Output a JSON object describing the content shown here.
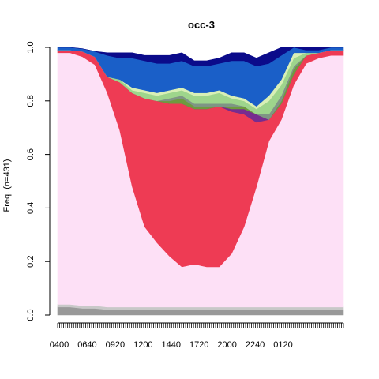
{
  "chart_data": {
    "type": "area",
    "title": "occ-3",
    "ylabel": "Freq. (n=431)",
    "xlabel": "",
    "ylim": [
      0,
      1
    ],
    "y_ticks": [
      "0.0",
      "0.2",
      "0.4",
      "0.6",
      "0.8",
      "1.0"
    ],
    "x_tick_labels": [
      "0400",
      "0640",
      "0920",
      "1200",
      "1440",
      "1720",
      "2000",
      "2240",
      "0120"
    ],
    "x_categories_count": 144,
    "legend": "none",
    "grid": false,
    "x": [
      "0400",
      "0540",
      "0640",
      "0700",
      "0740",
      "0800",
      "0830",
      "0900",
      "0920",
      "1000",
      "1100",
      "1200",
      "1330",
      "1440",
      "1530",
      "1600",
      "1640",
      "1700",
      "1720",
      "1800",
      "2000",
      "2240",
      "0120",
      "0350"
    ],
    "series": [
      {
        "color": "#999999",
        "values": [
          0.03,
          0.03,
          0.025,
          0.025,
          0.02,
          0.02,
          0.02,
          0.02,
          0.02,
          0.02,
          0.02,
          0.02,
          0.02,
          0.02,
          0.02,
          0.02,
          0.02,
          0.02,
          0.02,
          0.02,
          0.02,
          0.02,
          0.02,
          0.02
        ]
      },
      {
        "color": "#c8c8c8",
        "values": [
          0.01,
          0.01,
          0.01,
          0.01,
          0.01,
          0.01,
          0.01,
          0.01,
          0.01,
          0.01,
          0.01,
          0.01,
          0.01,
          0.01,
          0.01,
          0.01,
          0.01,
          0.01,
          0.01,
          0.01,
          0.01,
          0.01,
          0.01,
          0.01
        ]
      },
      {
        "color": "#fde0f6",
        "values": [
          0.94,
          0.94,
          0.93,
          0.9,
          0.8,
          0.66,
          0.45,
          0.3,
          0.24,
          0.19,
          0.15,
          0.16,
          0.15,
          0.15,
          0.2,
          0.3,
          0.45,
          0.62,
          0.7,
          0.83,
          0.91,
          0.93,
          0.94,
          0.94
        ]
      },
      {
        "color": "#ee3b54",
        "values": [
          0.01,
          0.01,
          0.02,
          0.03,
          0.06,
          0.18,
          0.35,
          0.48,
          0.53,
          0.57,
          0.61,
          0.58,
          0.59,
          0.6,
          0.53,
          0.42,
          0.24,
          0.08,
          0.06,
          0.04,
          0.03,
          0.02,
          0.02,
          0.02
        ]
      },
      {
        "color": "#772c8f",
        "values": [
          0.0,
          0.0,
          0.0,
          0.0,
          0.0,
          0.0,
          0.0,
          0.0,
          0.0,
          0.0,
          0.0,
          0.0,
          0.0,
          0.0,
          0.01,
          0.02,
          0.03,
          0.0,
          0.0,
          0.0,
          0.0,
          0.0,
          0.0,
          0.0
        ]
      },
      {
        "color": "#6e9a3f",
        "values": [
          0.0,
          0.0,
          0.0,
          0.0,
          0.0,
          0.0,
          0.0,
          0.0,
          0.0,
          0.01,
          0.02,
          0.01,
          0.01,
          0.0,
          0.01,
          0.01,
          0.0,
          0.0,
          0.01,
          0.02,
          0.0,
          0.0,
          0.0,
          0.0
        ]
      },
      {
        "color": "#7f9585",
        "values": [
          0.0,
          0.0,
          0.0,
          0.0,
          0.0,
          0.0,
          0.0,
          0.0,
          0.0,
          0.01,
          0.01,
          0.01,
          0.01,
          0.01,
          0.01,
          0.0,
          0.0,
          0.02,
          0.02,
          0.01,
          0.0,
          0.0,
          0.0,
          0.0
        ]
      },
      {
        "color": "#9ed58c",
        "values": [
          0.0,
          0.0,
          0.0,
          0.0,
          0.0,
          0.01,
          0.01,
          0.02,
          0.02,
          0.02,
          0.02,
          0.03,
          0.03,
          0.04,
          0.02,
          0.02,
          0.02,
          0.05,
          0.04,
          0.03,
          0.01,
          0.0,
          0.0,
          0.0
        ]
      },
      {
        "color": "#d8efb6",
        "values": [
          0.0,
          0.0,
          0.0,
          0.0,
          0.0,
          0.0,
          0.01,
          0.01,
          0.01,
          0.01,
          0.01,
          0.01,
          0.01,
          0.01,
          0.01,
          0.01,
          0.01,
          0.02,
          0.02,
          0.02,
          0.0,
          0.0,
          0.0,
          0.0
        ]
      },
      {
        "color": "#1a5fc8",
        "values": [
          0.01,
          0.01,
          0.01,
          0.02,
          0.08,
          0.08,
          0.11,
          0.11,
          0.11,
          0.1,
          0.1,
          0.1,
          0.1,
          0.1,
          0.13,
          0.14,
          0.15,
          0.12,
          0.09,
          0.03,
          0.01,
          0.01,
          0.01,
          0.01
        ]
      },
      {
        "color": "#0b0b8a",
        "values": [
          0.0,
          0.0,
          0.0,
          0.0,
          0.01,
          0.02,
          0.02,
          0.02,
          0.03,
          0.03,
          0.03,
          0.02,
          0.02,
          0.02,
          0.03,
          0.03,
          0.03,
          0.04,
          0.04,
          0.02,
          0.01,
          0.01,
          0.0,
          0.0
        ]
      }
    ]
  }
}
